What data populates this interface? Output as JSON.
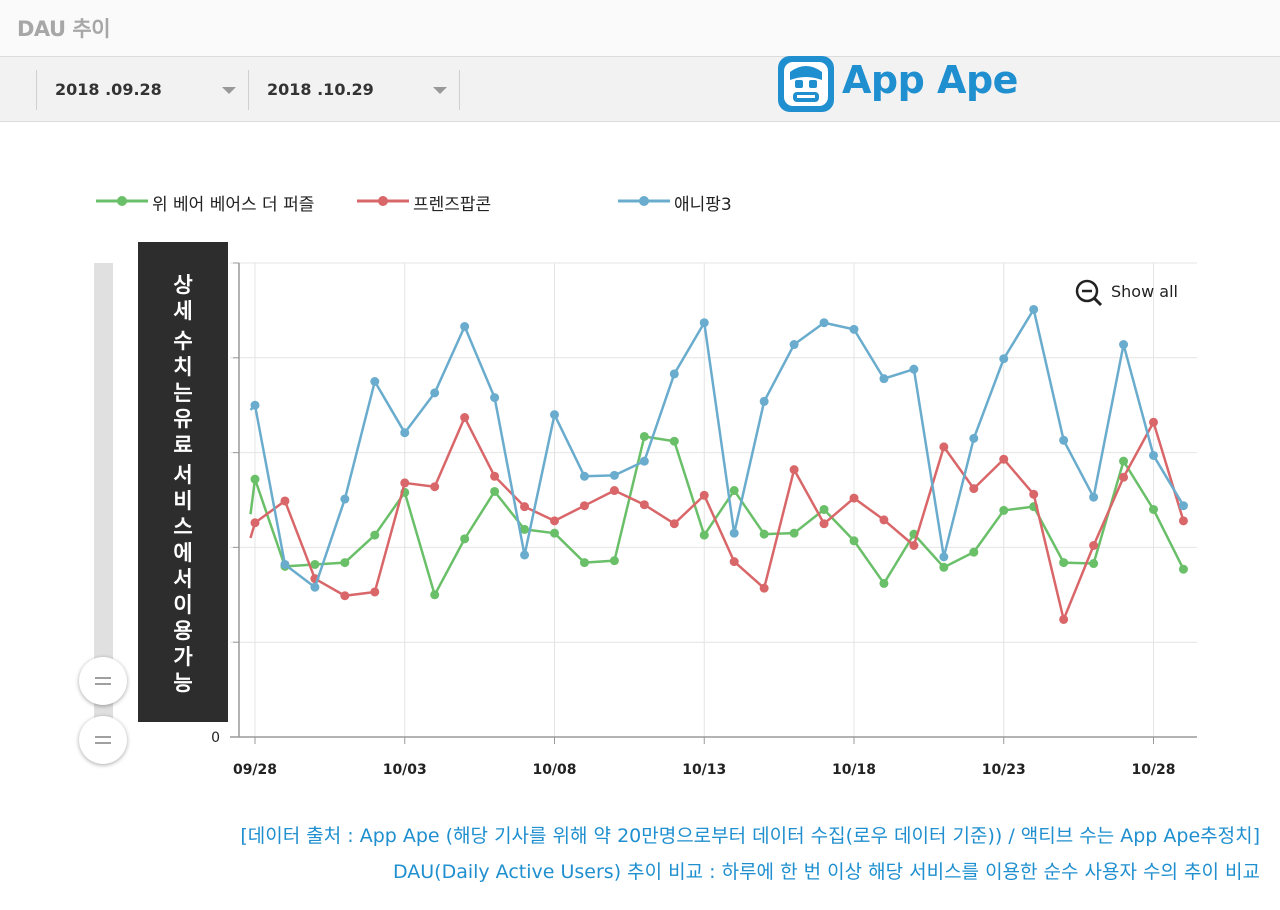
{
  "header": {
    "title": "DAU 추이"
  },
  "toolbar": {
    "start_date": "2018 .09.28",
    "end_date": "2018 .10.29"
  },
  "logo": {
    "text": "App Ape"
  },
  "overlay": {
    "lines": [
      "상",
      "세",
      "",
      "수",
      "치",
      "는",
      "유",
      "료",
      "",
      "서",
      "비",
      "스",
      "에",
      "서",
      "이",
      "용",
      "가",
      "능"
    ]
  },
  "controls": {
    "show_all": "Show all"
  },
  "colors": {
    "green": "#6abf69",
    "red": "#d9676a",
    "blue": "#6aaccd",
    "accent": "#1f8fcf"
  },
  "chart_data": {
    "type": "line",
    "title": "DAU 추이",
    "x": [
      "09/28",
      "09/29",
      "09/30",
      "10/01",
      "10/02",
      "10/03",
      "10/04",
      "10/05",
      "10/06",
      "10/07",
      "10/08",
      "10/09",
      "10/10",
      "10/11",
      "10/12",
      "10/13",
      "10/14",
      "10/15",
      "10/16",
      "10/17",
      "10/18",
      "10/19",
      "10/20",
      "10/21",
      "10/22",
      "10/23",
      "10/24",
      "10/25",
      "10/26",
      "10/27",
      "10/28",
      "10/29"
    ],
    "x_start_fraction": -0.15,
    "tick_labels": [
      "09/28",
      "10/03",
      "10/08",
      "10/13",
      "10/18",
      "10/23",
      "10/28"
    ],
    "tick_indices": [
      0,
      5,
      10,
      15,
      20,
      25,
      30
    ],
    "ylim": [
      0,
      5
    ],
    "y_tick_labels": [
      "0"
    ],
    "y_gridlines": [
      1,
      2,
      3,
      4,
      5
    ],
    "legend_position": "top-left",
    "series": [
      {
        "name": "위 베어 베어스 더 퍼즐",
        "color": "#6abf69",
        "start_value": 2.35,
        "values": [
          2.72,
          1.8,
          1.82,
          1.84,
          2.13,
          2.58,
          1.5,
          2.09,
          2.59,
          2.19,
          2.15,
          1.84,
          1.86,
          3.17,
          3.12,
          2.13,
          2.6,
          2.14,
          2.15,
          2.4,
          2.07,
          1.62,
          2.14,
          1.79,
          1.95,
          2.39,
          2.43,
          1.84,
          1.83,
          2.91,
          2.4,
          1.77
        ]
      },
      {
        "name": "프렌즈팝콘",
        "color": "#d9676a",
        "start_value": 2.1,
        "values": [
          2.26,
          2.49,
          1.67,
          1.49,
          1.53,
          2.68,
          2.64,
          3.37,
          2.75,
          2.43,
          2.28,
          2.44,
          2.6,
          2.45,
          2.25,
          2.55,
          1.85,
          1.57,
          2.82,
          2.25,
          2.52,
          2.29,
          2.02,
          3.06,
          2.62,
          2.93,
          2.56,
          1.24,
          2.02,
          2.74,
          3.32,
          2.28
        ]
      },
      {
        "name": "애니팡3",
        "color": "#6aaccd",
        "start_value": 3.45,
        "values": [
          3.5,
          1.82,
          1.58,
          2.51,
          3.75,
          3.21,
          3.63,
          4.33,
          3.58,
          1.92,
          3.4,
          2.75,
          2.76,
          2.91,
          3.83,
          4.37,
          2.15,
          3.54,
          4.14,
          4.37,
          4.3,
          3.78,
          3.88,
          1.9,
          3.15,
          3.99,
          4.51,
          3.13,
          2.53,
          4.14,
          2.97,
          2.44
        ]
      }
    ]
  },
  "footer": {
    "line1": "[데이터 출처 : App Ape (해당 기사를 위해 약 20만명으로부터 데이터 수집(로우 데이터 기준)) / 액티브 수는 App Ape추정치]",
    "line2": "DAU(Daily Active Users) 추이 비교 : 하루에 한 번 이상 해당 서비스를 이용한 순수 사용자 수의 추이 비교"
  }
}
